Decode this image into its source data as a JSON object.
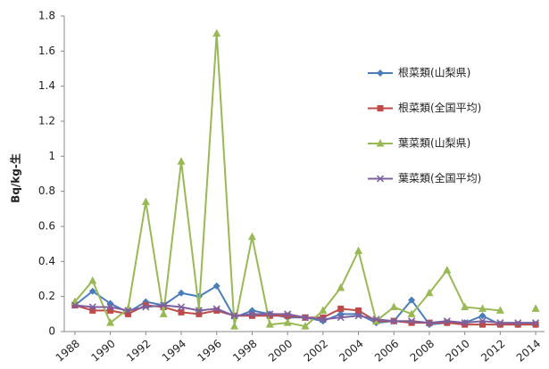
{
  "chart_data": {
    "type": "line",
    "y_label": "Bq/kg-生",
    "x": [
      1988,
      1989,
      1990,
      1991,
      1992,
      1993,
      1994,
      1995,
      1996,
      1997,
      1998,
      1999,
      2000,
      2001,
      2002,
      2003,
      2004,
      2005,
      2006,
      2007,
      2008,
      2009,
      2010,
      2011,
      2012,
      2013,
      2014
    ],
    "xlim": [
      1987.4,
      2014.5
    ],
    "xticks": [
      1988,
      1990,
      1992,
      1994,
      1996,
      1998,
      2000,
      2002,
      2004,
      2006,
      2008,
      2010,
      2012,
      2014
    ],
    "ylim": [
      0,
      1.8
    ],
    "yticks": [
      0,
      0.2,
      0.4,
      0.6,
      0.8,
      1,
      1.2,
      1.4,
      1.6,
      1.8
    ],
    "grid": false,
    "legend": "right",
    "series": [
      {
        "name": "根菜類(山梨県)",
        "color": "#4a7ebb",
        "marker": "diamond",
        "values": [
          0.15,
          0.23,
          0.16,
          0.11,
          0.17,
          0.15,
          0.22,
          0.2,
          0.26,
          0.08,
          0.12,
          0.1,
          0.08,
          0.08,
          0.06,
          0.1,
          0.1,
          0.05,
          0.06,
          0.18,
          0.04,
          0.05,
          0.05,
          0.09,
          0.04,
          0.04,
          0.04
        ]
      },
      {
        "name": "根菜類(全国平均)",
        "color": "#be4b48",
        "marker": "square",
        "values": [
          0.15,
          0.12,
          0.12,
          0.1,
          0.15,
          0.14,
          0.11,
          0.1,
          0.12,
          0.09,
          0.09,
          0.09,
          0.09,
          0.08,
          0.08,
          0.13,
          0.12,
          0.06,
          0.06,
          0.05,
          0.05,
          0.05,
          0.04,
          0.04,
          0.04,
          0.04,
          0.04
        ]
      },
      {
        "name": "葉菜類(山梨県)",
        "color": "#98b954",
        "marker": "triangle",
        "values": [
          0.17,
          0.29,
          0.05,
          0.13,
          0.74,
          0.1,
          0.97,
          0.13,
          1.7,
          0.03,
          0.54,
          0.04,
          0.05,
          0.03,
          0.12,
          0.25,
          0.46,
          0.06,
          0.14,
          0.1,
          0.22,
          0.35,
          0.14,
          0.13,
          0.12,
          null,
          0.13
        ]
      },
      {
        "name": "葉菜類(全国平均)",
        "color": "#7d60a0",
        "marker": "x",
        "values": [
          0.15,
          0.14,
          0.14,
          0.12,
          0.14,
          0.15,
          0.14,
          0.12,
          0.13,
          0.09,
          0.1,
          0.1,
          0.1,
          0.08,
          0.07,
          0.08,
          0.09,
          0.07,
          0.06,
          0.06,
          0.05,
          0.06,
          0.05,
          0.06,
          0.05,
          0.05,
          0.05
        ]
      }
    ]
  }
}
